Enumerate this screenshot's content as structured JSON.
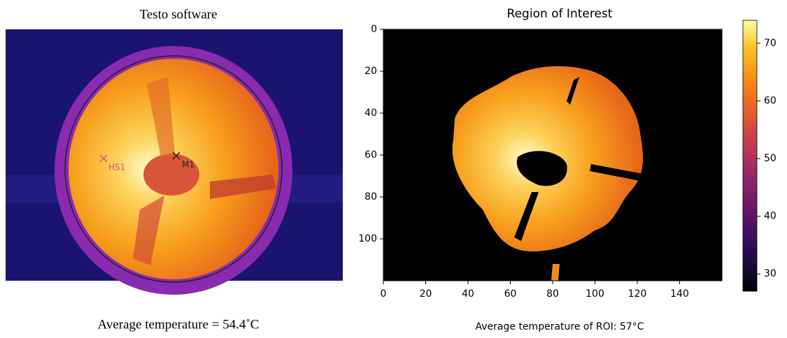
{
  "left": {
    "title": "Testo software",
    "markers": [
      "HS1",
      "M1"
    ],
    "caption": "Average temperature = 54.4˚C"
  },
  "right": {
    "title": "Region of Interest",
    "xlim": [
      0,
      160
    ],
    "ylim": [
      0,
      120
    ],
    "xticks": [
      0,
      20,
      40,
      60,
      80,
      100,
      120,
      140
    ],
    "yticks": [
      0,
      20,
      40,
      60,
      80,
      100
    ],
    "colorbar": {
      "lim": [
        27,
        74
      ],
      "ticks": [
        30,
        40,
        50,
        60,
        70
      ]
    },
    "caption": "Average temperature of ROI: 57°C"
  }
}
